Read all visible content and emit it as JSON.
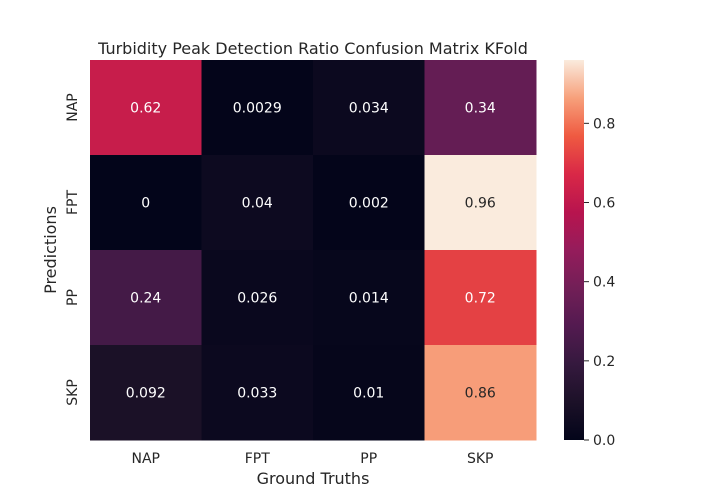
{
  "chart_data": {
    "type": "heatmap",
    "title": "Turbidity Peak Detection Ratio Confusion Matrix KFold",
    "xlabel": "Ground Truths",
    "ylabel": "Predictions",
    "x_categories": [
      "NAP",
      "FPT",
      "PP",
      "SKP"
    ],
    "y_categories": [
      "NAP",
      "FPT",
      "PP",
      "SKP"
    ],
    "values": [
      [
        0.62,
        0.0029,
        0.034,
        0.34
      ],
      [
        0,
        0.04,
        0.002,
        0.96
      ],
      [
        0.24,
        0.026,
        0.014,
        0.72
      ],
      [
        0.092,
        0.033,
        0.01,
        0.86
      ]
    ],
    "value_labels": [
      [
        "0.62",
        "0.0029",
        "0.034",
        "0.34"
      ],
      [
        "0",
        "0.04",
        "0.002",
        "0.96"
      ],
      [
        "0.24",
        "0.026",
        "0.014",
        "0.72"
      ],
      [
        "0.092",
        "0.033",
        "0.01",
        "0.86"
      ]
    ],
    "colorbar": {
      "range": [
        0,
        0.96
      ],
      "ticks": [
        0.0,
        0.2,
        0.4,
        0.6,
        0.8
      ],
      "tick_labels": [
        "0.0",
        "0.2",
        "0.4",
        "0.6",
        "0.8"
      ],
      "colormap": "rocket"
    }
  }
}
